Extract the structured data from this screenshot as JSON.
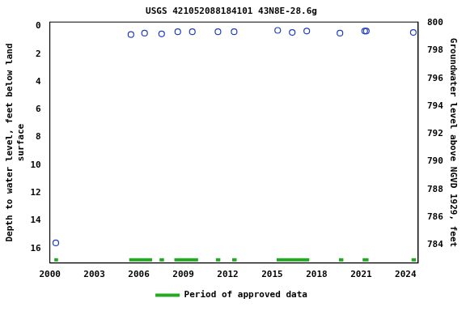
{
  "chart_data": {
    "type": "scatter",
    "title": "USGS 421052088184101 43N8E-28.6g",
    "y_label": [
      "Depth to water level, feet below land",
      "surface"
    ],
    "y2_label": "Groundwater level above NGVD 1929, feet",
    "x": [
      2000.4,
      2005.47,
      2006.39,
      2007.54,
      2008.63,
      2009.61,
      2011.34,
      2012.43,
      2015.37,
      2016.35,
      2017.33,
      2019.57,
      2021.24,
      2021.35,
      2024.52
    ],
    "values": [
      15.6,
      0.6,
      0.5,
      0.55,
      0.4,
      0.4,
      0.4,
      0.4,
      0.3,
      0.45,
      0.35,
      0.5,
      0.35,
      0.35,
      0.45
    ],
    "color": "#1f3fbf",
    "marker": "circle",
    "xlim": [
      2000,
      2024.85
    ],
    "xticks": [
      2000,
      2003,
      2006,
      2009,
      2012,
      2015,
      2018,
      2021,
      2024
    ],
    "ylim": [
      -0.3,
      17.05
    ],
    "yticks": [
      0,
      2,
      4,
      6,
      8,
      10,
      12,
      14,
      16
    ],
    "y2lim": [
      782.7,
      800.05
    ],
    "y2ticks": [
      784,
      786,
      788,
      790,
      792,
      794,
      796,
      798,
      800
    ],
    "grid": false,
    "legend": "bottom",
    "approved_periods": {
      "name": "Period of approved data",
      "color": "#22aa22",
      "ranges": [
        [
          2000.3,
          2000.55
        ],
        [
          2005.35,
          2006.9
        ],
        [
          2007.4,
          2007.7
        ],
        [
          2008.4,
          2010.0
        ],
        [
          2011.2,
          2011.5
        ],
        [
          2012.3,
          2012.6
        ],
        [
          2015.3,
          2017.5
        ],
        [
          2019.5,
          2019.8
        ],
        [
          2021.1,
          2021.5
        ],
        [
          2024.4,
          2024.7
        ]
      ]
    }
  }
}
